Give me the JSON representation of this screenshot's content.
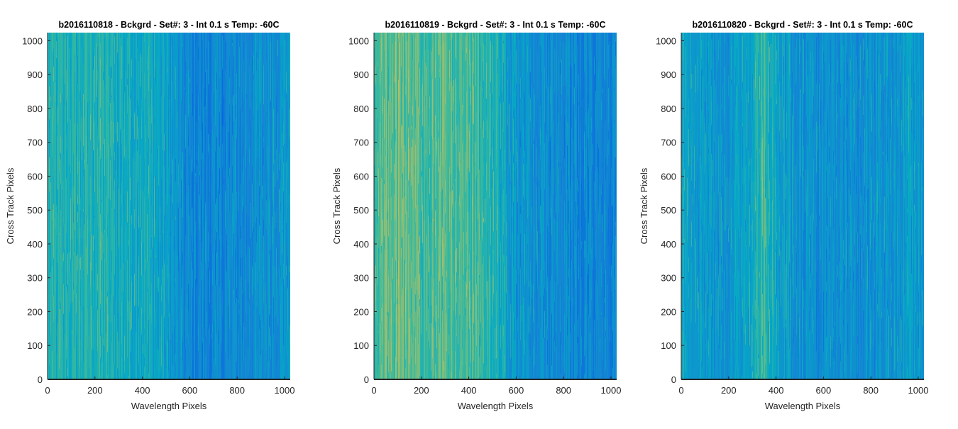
{
  "chart_data": [
    {
      "type": "heatmap",
      "title": "b2016110818 - Bckgrd - Set#: 3 - Int 0.1 s Temp: -60C",
      "xlabel": "Wavelength Pixels",
      "ylabel": "Cross Track Pixels",
      "xlim": [
        0,
        1024
      ],
      "ylim": [
        0,
        1024
      ],
      "xticks": [
        0,
        200,
        400,
        600,
        800,
        1000
      ],
      "yticks": [
        0,
        100,
        200,
        300,
        400,
        500,
        600,
        700,
        800,
        900,
        1000
      ],
      "colormap": "parula",
      "column_profile": {
        "x": [
          0,
          100,
          200,
          300,
          400,
          500,
          560,
          600,
          700,
          800,
          900,
          1024
        ],
        "level": [
          0.5,
          0.5,
          0.52,
          0.48,
          0.48,
          0.42,
          0.34,
          0.3,
          0.3,
          0.32,
          0.34,
          0.4
        ]
      }
    },
    {
      "type": "heatmap",
      "title": "b2016110819 - Bckgrd - Set#: 3 - Int 0.1 s Temp: -60C",
      "xlabel": "Wavelength Pixels",
      "ylabel": "Cross Track Pixels",
      "xlim": [
        0,
        1024
      ],
      "ylim": [
        0,
        1024
      ],
      "xticks": [
        0,
        200,
        400,
        600,
        800,
        1000
      ],
      "yticks": [
        0,
        100,
        200,
        300,
        400,
        500,
        600,
        700,
        800,
        900,
        1000
      ],
      "colormap": "parula",
      "column_profile": {
        "x": [
          0,
          100,
          200,
          300,
          400,
          500,
          550,
          600,
          700,
          800,
          900,
          1024
        ],
        "level": [
          0.6,
          0.64,
          0.6,
          0.6,
          0.58,
          0.52,
          0.44,
          0.38,
          0.34,
          0.32,
          0.3,
          0.3
        ]
      }
    },
    {
      "type": "heatmap",
      "title": "b2016110820 - Bckgrd - Set#: 3 - Int 0.1 s Temp: -60C",
      "xlabel": "Wavelength Pixels",
      "ylabel": "Cross Track Pixels",
      "xlim": [
        0,
        1024
      ],
      "ylim": [
        0,
        1024
      ],
      "xticks": [
        0,
        200,
        400,
        600,
        800,
        1000
      ],
      "yticks": [
        0,
        100,
        200,
        300,
        400,
        500,
        600,
        700,
        800,
        900,
        1000
      ],
      "colormap": "parula",
      "column_profile": {
        "x": [
          0,
          100,
          200,
          280,
          350,
          420,
          500,
          600,
          700,
          800,
          900,
          1024
        ],
        "level": [
          0.46,
          0.4,
          0.38,
          0.44,
          0.56,
          0.42,
          0.36,
          0.34,
          0.34,
          0.36,
          0.38,
          0.4
        ]
      }
    }
  ]
}
